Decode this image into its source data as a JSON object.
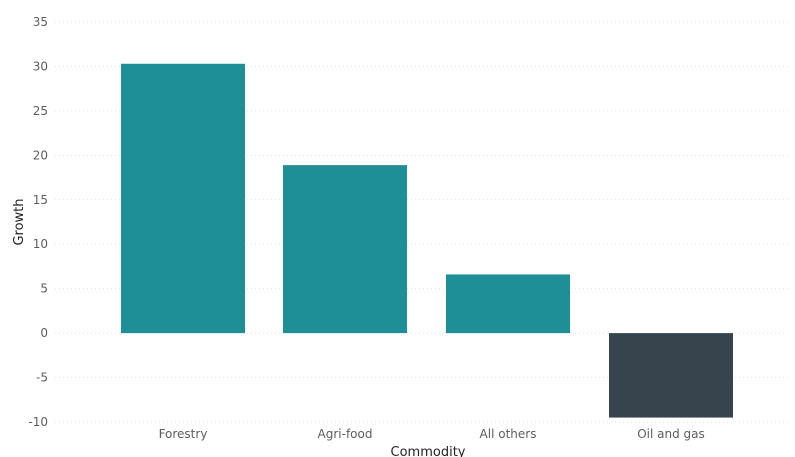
{
  "chart_data": {
    "type": "bar",
    "title": "",
    "xlabel": "Commodity",
    "ylabel": "Growth",
    "categories": [
      "Forestry",
      "Agri-food",
      "All others",
      "Oil and gas"
    ],
    "values": [
      30.3,
      18.9,
      6.6,
      -9.5
    ],
    "ylim": [
      -10,
      35
    ],
    "yticks": [
      35,
      30,
      25,
      20,
      15,
      10,
      5,
      0,
      -5,
      -10
    ],
    "grid": true,
    "legend": "none",
    "colors": {
      "positive": "#1f8f97",
      "negative": "#37444d"
    }
  }
}
